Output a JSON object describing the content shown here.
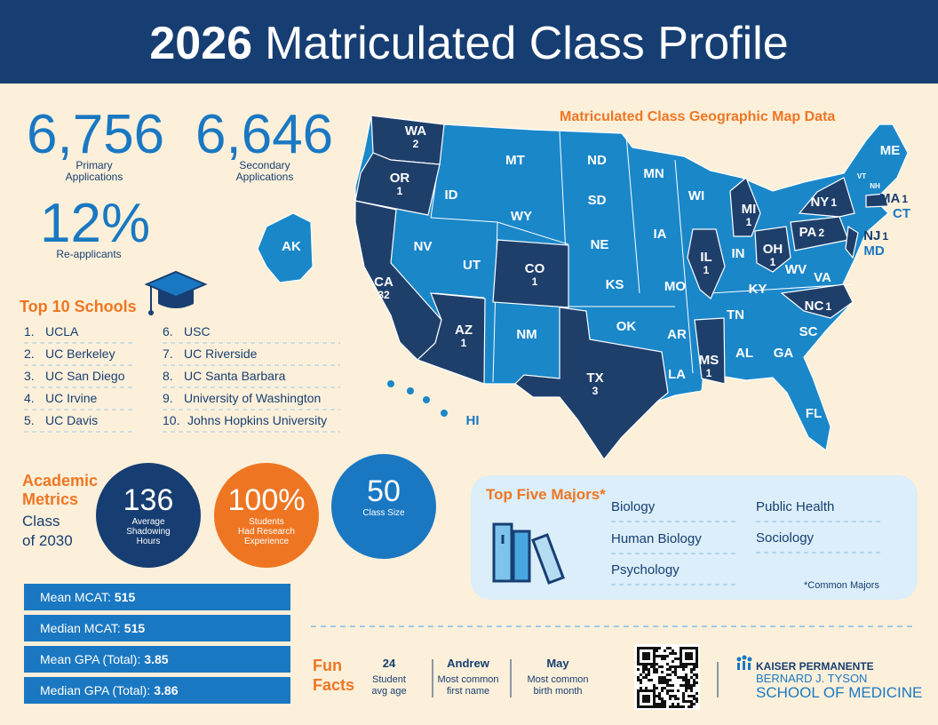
{
  "header": {
    "year": "2026",
    "title": "Matriculated Class Profile"
  },
  "applications": [
    {
      "value": "6,756",
      "label": [
        "Primary",
        "Applications"
      ]
    },
    {
      "value": "6,646",
      "label": [
        "Secondary",
        "Applications"
      ]
    },
    {
      "value": "12%",
      "label": [
        "Re-applicants"
      ]
    }
  ],
  "schools": {
    "title": "Top 10 Schools",
    "items": [
      {
        "rank": "1.",
        "name": "UCLA"
      },
      {
        "rank": "2.",
        "name": "UC Berkeley"
      },
      {
        "rank": "3.",
        "name": "UC San Diego"
      },
      {
        "rank": "4.",
        "name": "UC Irvine"
      },
      {
        "rank": "5.",
        "name": "UC Davis"
      },
      {
        "rank": "6.",
        "name": "USC"
      },
      {
        "rank": "7.",
        "name": "UC Riverside"
      },
      {
        "rank": "8.",
        "name": "UC Santa Barbara"
      },
      {
        "rank": "9.",
        "name": "University of Washington"
      },
      {
        "rank": "10.",
        "name": "Johns Hopkins University"
      }
    ]
  },
  "metrics": {
    "title": [
      "Academic",
      "Metrics"
    ],
    "subtitle": [
      "Class",
      "of 2030"
    ],
    "circles": [
      {
        "value": "136",
        "label": [
          "Average",
          "Shadowing",
          "Hours"
        ]
      },
      {
        "value": "100%",
        "label": [
          "Students",
          "Had Research",
          "Experience"
        ]
      },
      {
        "value": "50",
        "label": [
          "Class Size"
        ]
      }
    ]
  },
  "stats": [
    {
      "label": "Mean MCAT:",
      "value": "515"
    },
    {
      "label": "Median MCAT:",
      "value": "515"
    },
    {
      "label": "Mean GPA (Total):",
      "value": "3.85"
    },
    {
      "label": "Median GPA (Total):",
      "value": "3.86"
    }
  ],
  "majors": {
    "title": "Top Five Majors*",
    "items": [
      "Biology",
      "Human Biology",
      "Psychology",
      "Public Health",
      "Sociology"
    ],
    "note": "*Common Majors"
  },
  "map": {
    "title": "Matriculated Class Geographic Map Data",
    "states": [
      {
        "abbr": "WA",
        "count": 2
      },
      {
        "abbr": "OR",
        "count": 1
      },
      {
        "abbr": "CA",
        "count": 32
      },
      {
        "abbr": "AZ",
        "count": 1
      },
      {
        "abbr": "CO",
        "count": 1
      },
      {
        "abbr": "TX",
        "count": 3
      },
      {
        "abbr": "IL",
        "count": 1
      },
      {
        "abbr": "MI",
        "count": 1
      },
      {
        "abbr": "OH",
        "count": 1
      },
      {
        "abbr": "PA",
        "count": 2
      },
      {
        "abbr": "NY",
        "count": 1
      },
      {
        "abbr": "NJ",
        "count": 1
      },
      {
        "abbr": "MA",
        "count": 1
      },
      {
        "abbr": "MS",
        "count": 1
      },
      {
        "abbr": "NC",
        "count": 1
      },
      {
        "abbr": "AK"
      },
      {
        "abbr": "HI"
      },
      {
        "abbr": "ID"
      },
      {
        "abbr": "MT"
      },
      {
        "abbr": "ND"
      },
      {
        "abbr": "SD"
      },
      {
        "abbr": "WY"
      },
      {
        "abbr": "NV"
      },
      {
        "abbr": "UT"
      },
      {
        "abbr": "NE"
      },
      {
        "abbr": "KS"
      },
      {
        "abbr": "NM"
      },
      {
        "abbr": "OK"
      },
      {
        "abbr": "MN"
      },
      {
        "abbr": "IA"
      },
      {
        "abbr": "MO"
      },
      {
        "abbr": "AR"
      },
      {
        "abbr": "LA"
      },
      {
        "abbr": "WI"
      },
      {
        "abbr": "IN"
      },
      {
        "abbr": "KY"
      },
      {
        "abbr": "TN"
      },
      {
        "abbr": "AL"
      },
      {
        "abbr": "GA"
      },
      {
        "abbr": "FL"
      },
      {
        "abbr": "SC"
      },
      {
        "abbr": "VA"
      },
      {
        "abbr": "WV"
      },
      {
        "abbr": "MD"
      },
      {
        "abbr": "CT"
      },
      {
        "abbr": "ME"
      },
      {
        "abbr": "VT"
      },
      {
        "abbr": "NH"
      }
    ]
  },
  "fun_facts": {
    "title": [
      "Fun",
      "Facts"
    ],
    "items": [
      {
        "value": "24",
        "label": [
          "Student",
          "avg age"
        ]
      },
      {
        "value": "Andrew",
        "label": [
          "Most common",
          "first name"
        ]
      },
      {
        "value": "May",
        "label": [
          "Most common",
          "birth month"
        ]
      }
    ]
  },
  "logo": {
    "org": "KAISER PERMANENTE",
    "name": "BERNARD J. TYSON",
    "school": "SCHOOL OF MEDICINE"
  }
}
